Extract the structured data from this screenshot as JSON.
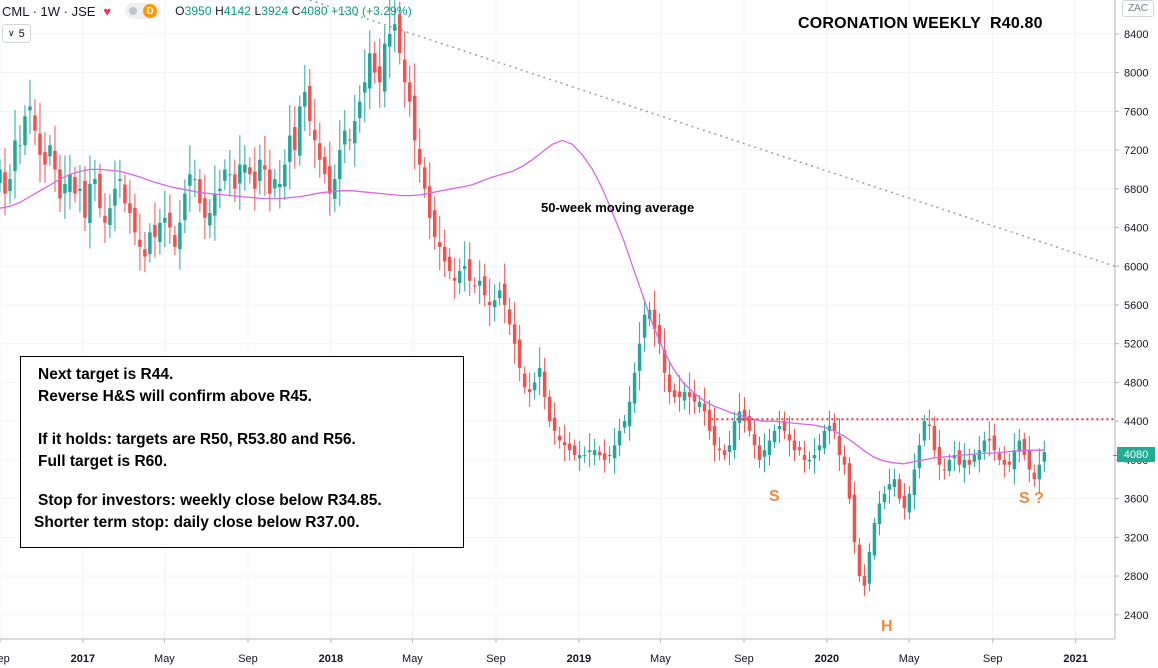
{
  "header": {
    "symbol": "CML · 1W · JSE",
    "open_label": "O",
    "open": "3950",
    "high_label": "H",
    "high": "4142",
    "low_label": "L",
    "low": "3924",
    "close_label": "C",
    "close": "4080",
    "change": "+130 (+3.29%)",
    "data_badge": "D",
    "heart_icon": "heart-icon"
  },
  "indicator_toggle": {
    "label": "5",
    "icon": "chevron-down-icon"
  },
  "currency_badge": "ZAC",
  "current_price_label": "4080",
  "colors": {
    "up": "#26a69a",
    "down": "#ef5350",
    "ma": "#d966e8",
    "neckline": "#e53935",
    "trend": "#9e9e9e",
    "pattern": "#f08a3c",
    "current": "#22ab94"
  },
  "annotations": {
    "title": "CORONATION WEEKLY  R40.80",
    "ma_label": "50-week moving average",
    "pattern_s1": "S",
    "pattern_h": "H",
    "pattern_s2": "S ?",
    "notes": [
      "Next target is R44.",
      "Reverse H&S will confirm above R45.",
      "If it holds: targets are R50, R53.80 and R56.",
      "Full target is R60.",
      "Stop for investors: weekly close below R34.85.",
      "Shorter term stop: daily close below R37.00."
    ]
  },
  "chart_data": {
    "type": "candlestick",
    "ylim": [
      2150,
      8750
    ],
    "xlim": [
      "2016-09-01",
      "2021-02-28"
    ],
    "x_ticks": [
      {
        "label": "Sep",
        "date": "2016-09-01"
      },
      {
        "label": "2017",
        "date": "2017-01-01"
      },
      {
        "label": "May",
        "date": "2017-05-01"
      },
      {
        "label": "Sep",
        "date": "2017-09-01"
      },
      {
        "label": "2018",
        "date": "2018-01-01"
      },
      {
        "label": "May",
        "date": "2018-05-01"
      },
      {
        "label": "Sep",
        "date": "2018-09-01"
      },
      {
        "label": "2019",
        "date": "2019-01-01"
      },
      {
        "label": "May",
        "date": "2019-05-01"
      },
      {
        "label": "Sep",
        "date": "2019-09-01"
      },
      {
        "label": "2020",
        "date": "2020-01-01"
      },
      {
        "label": "May",
        "date": "2020-05-01"
      },
      {
        "label": "Sep",
        "date": "2020-09-01"
      },
      {
        "label": "2021",
        "date": "2021-01-01"
      }
    ],
    "y_ticks": [
      2400,
      2800,
      3200,
      3600,
      4000,
      4400,
      4800,
      5200,
      5600,
      6000,
      6400,
      6800,
      7200,
      7600,
      8000,
      8400
    ],
    "y_tick_labels": [
      "2400",
      "2800",
      "3200",
      "3600",
      "4000",
      "4400",
      "4800",
      "5200",
      "5600",
      "6000",
      "6400",
      "6800",
      "7200",
      "7600",
      "8000",
      "8400"
    ],
    "closes": [
      7000,
      6750,
      6900,
      7300,
      7250,
      7550,
      7650,
      7400,
      7150,
      7050,
      7250,
      7000,
      6700,
      6850,
      6950,
      6750,
      6800,
      6500,
      6850,
      6900,
      6600,
      6450,
      6600,
      6800,
      6900,
      6650,
      6550,
      6350,
      6200,
      6100,
      6350,
      6300,
      6450,
      6500,
      6400,
      6200,
      6450,
      6750,
      6950,
      6900,
      6650,
      6500,
      6550,
      6750,
      6800,
      7000,
      6950,
      6800,
      7050,
      7050,
      6950,
      6800,
      7100,
      7000,
      6750,
      6900,
      6850,
      7050,
      7350,
      7200,
      7650,
      7800,
      7500,
      7300,
      7100,
      6950,
      6750,
      6900,
      7200,
      7400,
      7300,
      7500,
      7700,
      7900,
      8200,
      8000,
      7900,
      8300,
      8400,
      8500,
      8200,
      7900,
      7700,
      7300,
      7050,
      6800,
      6500,
      6300,
      6200,
      6050,
      5950,
      5850,
      5950,
      6000,
      5850,
      5800,
      5850,
      5700,
      5600,
      5650,
      5750,
      5600,
      5400,
      5200,
      4950,
      4750,
      4700,
      4800,
      4950,
      4650,
      4400,
      4300,
      4200,
      4150,
      4100,
      4050,
      4050,
      4050,
      4100,
      4100,
      4050,
      4000,
      4050,
      4150,
      4300,
      4400,
      4600,
      4900,
      5200,
      5500,
      5550,
      5350,
      5200,
      4900,
      4700,
      4650,
      4650,
      4700,
      4650,
      4600,
      4600,
      4500,
      4300,
      4150,
      4100,
      4050,
      4150,
      4400,
      4500,
      4400,
      4300,
      4150,
      4000,
      4100,
      4200,
      4300,
      4350,
      4300,
      4200,
      4100,
      4100,
      4000,
      4000,
      4050,
      4150,
      4300,
      4350,
      4300,
      4050,
      3950,
      3600,
      3150,
      2800,
      2700,
      3050,
      3350,
      3550,
      3650,
      3750,
      3800,
      3600,
      3500,
      3650,
      3900,
      4150,
      4400,
      4350,
      4100,
      3950,
      3900,
      4000,
      4050,
      3950,
      4000,
      3950,
      4050,
      4100,
      4200,
      4200,
      4100,
      4000,
      3950,
      3950,
      4100,
      4200,
      4050,
      3900,
      3800,
      3950,
      4080
    ],
    "ma": [
      6600,
      6620,
      6660,
      6720,
      6780,
      6840,
      6900,
      6950,
      6980,
      7000,
      7000,
      6990,
      6980,
      6950,
      6920,
      6880,
      6850,
      6820,
      6800,
      6780,
      6760,
      6750,
      6740,
      6730,
      6720,
      6710,
      6700,
      6700,
      6700,
      6710,
      6720,
      6740,
      6760,
      6770,
      6780,
      6780,
      6770,
      6760,
      6750,
      6740,
      6730,
      6730,
      6740,
      6760,
      6780,
      6800,
      6820,
      6840,
      6880,
      6920,
      6950,
      6980,
      7030,
      7100,
      7180,
      7260,
      7300,
      7260,
      7150,
      7000,
      6800,
      6550,
      6300,
      6000,
      5700,
      5400,
      5150,
      4950,
      4800,
      4700,
      4620,
      4560,
      4520,
      4480,
      4450,
      4420,
      4400,
      4400,
      4390,
      4380,
      4370,
      4360,
      4340,
      4300,
      4250,
      4180,
      4100,
      4030,
      3990,
      3970,
      3960,
      3980,
      4000,
      4020,
      4030,
      4040,
      4050,
      4060,
      4070,
      4070,
      4080,
      4090,
      4100,
      4100,
      4100
    ],
    "neckline": 4420,
    "trendline": {
      "start": {
        "date": "2017-12-01",
        "value": 8750
      },
      "end": {
        "date": "2021-02-28",
        "value": 6000
      }
    }
  }
}
